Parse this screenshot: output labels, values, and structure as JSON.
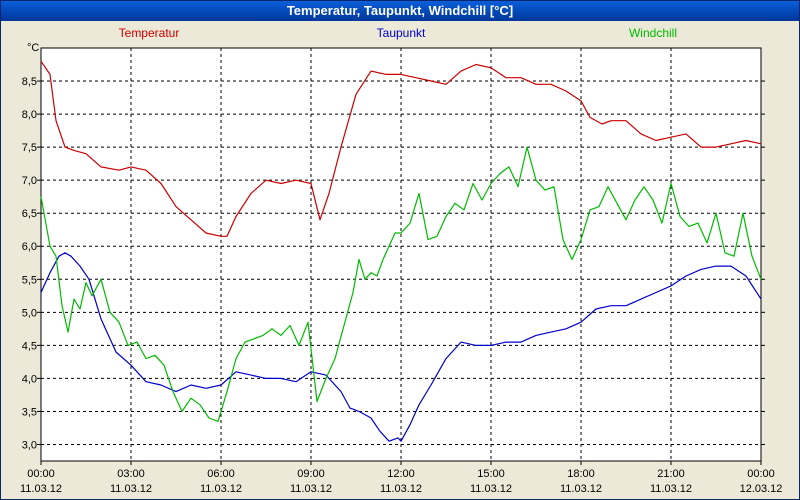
{
  "window": {
    "title": "Temperatur, Taupunkt, Windchill [°C]"
  },
  "chart_data": {
    "type": "line",
    "title": "Temperatur, Taupunkt, Windchill [°C]",
    "ylabel": "°C",
    "ylim": [
      2.75,
      9.0
    ],
    "yticks": [
      "3,0",
      "3,5",
      "4,0",
      "4,5",
      "5,0",
      "5,5",
      "6,0",
      "6,5",
      "7,0",
      "7,5",
      "8,0",
      "8,5"
    ],
    "ytick_values": [
      3.0,
      3.5,
      4.0,
      4.5,
      5.0,
      5.5,
      6.0,
      6.5,
      7.0,
      7.5,
      8.0,
      8.5
    ],
    "xlim": [
      0,
      24
    ],
    "xticks": [
      {
        "time": "00:00",
        "date": "11.03.12"
      },
      {
        "time": "03:00",
        "date": "11.03.12"
      },
      {
        "time": "06:00",
        "date": "11.03.12"
      },
      {
        "time": "09:00",
        "date": "11.03.12"
      },
      {
        "time": "12:00",
        "date": "11.03.12"
      },
      {
        "time": "15:00",
        "date": "11.03.12"
      },
      {
        "time": "18:00",
        "date": "11.03.12"
      },
      {
        "time": "21:00",
        "date": "11.03.12"
      },
      {
        "time": "00:00",
        "date": "12.03.12"
      }
    ],
    "grid": true,
    "legend_placement": "top",
    "series": [
      {
        "name": "Temperatur",
        "color": "#cc0000",
        "x": [
          0,
          0.3,
          0.5,
          0.8,
          1.1,
          1.5,
          2,
          2.6,
          3,
          3.5,
          4,
          4.5,
          5,
          5.5,
          6,
          6.2,
          6.5,
          7,
          7.5,
          8,
          8.5,
          9,
          9.3,
          9.6,
          10,
          10.5,
          11,
          11.5,
          12,
          12.5,
          13,
          13.5,
          14,
          14.5,
          15,
          15.5,
          16,
          16.5,
          17,
          17.5,
          18,
          18.3,
          18.7,
          19,
          19.5,
          20,
          20.5,
          21,
          21.5,
          22,
          22.5,
          23,
          23.5,
          24
        ],
        "y": [
          8.8,
          8.6,
          7.9,
          7.5,
          7.45,
          7.4,
          7.2,
          7.15,
          7.2,
          7.15,
          6.95,
          6.6,
          6.4,
          6.2,
          6.15,
          6.15,
          6.45,
          6.8,
          7.0,
          6.95,
          7.0,
          6.95,
          6.4,
          6.8,
          7.5,
          8.3,
          8.65,
          8.6,
          8.6,
          8.55,
          8.5,
          8.45,
          8.65,
          8.75,
          8.7,
          8.55,
          8.55,
          8.45,
          8.45,
          8.35,
          8.2,
          7.95,
          7.85,
          7.9,
          7.9,
          7.7,
          7.6,
          7.65,
          7.7,
          7.5,
          7.5,
          7.55,
          7.6,
          7.55
        ]
      },
      {
        "name": "Taupunkt",
        "color": "#0000cc",
        "x": [
          0,
          0.3,
          0.6,
          0.8,
          1,
          1.3,
          1.6,
          2,
          2.5,
          3,
          3.5,
          4,
          4.5,
          5,
          5.5,
          6,
          6.5,
          7,
          7.5,
          8,
          8.5,
          9,
          9.5,
          10,
          10.3,
          10.6,
          11,
          11.3,
          11.6,
          11.9,
          12,
          12.3,
          12.6,
          13,
          13.5,
          14,
          14.5,
          15,
          15.5,
          16,
          16.5,
          17,
          17.5,
          18,
          18.5,
          19,
          19.5,
          20,
          20.5,
          21,
          21.5,
          22,
          22.5,
          23,
          23.5,
          24
        ],
        "y": [
          5.3,
          5.6,
          5.85,
          5.9,
          5.85,
          5.7,
          5.5,
          4.9,
          4.4,
          4.2,
          3.95,
          3.9,
          3.8,
          3.9,
          3.85,
          3.9,
          4.1,
          4.05,
          4.0,
          4.0,
          3.95,
          4.1,
          4.05,
          3.8,
          3.55,
          3.5,
          3.4,
          3.2,
          3.05,
          3.1,
          3.05,
          3.3,
          3.6,
          3.9,
          4.3,
          4.55,
          4.5,
          4.5,
          4.55,
          4.55,
          4.65,
          4.7,
          4.75,
          4.85,
          5.05,
          5.1,
          5.1,
          5.2,
          5.3,
          5.4,
          5.55,
          5.65,
          5.7,
          5.7,
          5.55,
          5.2
        ]
      },
      {
        "name": "Windchill",
        "color": "#00bb00",
        "x": [
          0,
          0.3,
          0.5,
          0.7,
          0.9,
          1.1,
          1.3,
          1.5,
          1.7,
          2,
          2.3,
          2.6,
          2.9,
          3.2,
          3.5,
          3.8,
          4.1,
          4.4,
          4.7,
          5,
          5.3,
          5.6,
          5.9,
          6.2,
          6.5,
          6.8,
          7.1,
          7.4,
          7.7,
          8,
          8.3,
          8.6,
          8.9,
          9.2,
          9.5,
          9.8,
          10.1,
          10.4,
          10.6,
          10.8,
          11,
          11.2,
          11.4,
          11.6,
          11.8,
          12,
          12.3,
          12.6,
          12.9,
          13.2,
          13.5,
          13.8,
          14.1,
          14.4,
          14.7,
          15,
          15.3,
          15.6,
          15.9,
          16.2,
          16.5,
          16.8,
          17.1,
          17.4,
          17.7,
          18,
          18.3,
          18.6,
          18.9,
          19.2,
          19.5,
          19.8,
          20.1,
          20.4,
          20.7,
          21,
          21.3,
          21.6,
          21.9,
          22.2,
          22.5,
          22.8,
          23.1,
          23.4,
          23.7,
          24
        ],
        "y": [
          6.75,
          6.0,
          5.85,
          5.1,
          4.7,
          5.2,
          5.05,
          5.45,
          5.25,
          5.5,
          5.0,
          4.85,
          4.5,
          4.55,
          4.3,
          4.35,
          4.2,
          3.8,
          3.5,
          3.7,
          3.6,
          3.4,
          3.35,
          3.8,
          4.3,
          4.55,
          4.6,
          4.65,
          4.75,
          4.65,
          4.8,
          4.5,
          4.85,
          3.65,
          4.0,
          4.3,
          4.8,
          5.3,
          5.8,
          5.5,
          5.6,
          5.55,
          5.8,
          6.0,
          6.2,
          6.2,
          6.35,
          6.8,
          6.1,
          6.15,
          6.45,
          6.65,
          6.55,
          6.95,
          6.7,
          6.95,
          7.1,
          7.2,
          6.9,
          7.5,
          7.0,
          6.85,
          6.9,
          6.1,
          5.8,
          6.1,
          6.55,
          6.6,
          6.9,
          6.65,
          6.4,
          6.7,
          6.9,
          6.7,
          6.35,
          6.95,
          6.45,
          6.3,
          6.35,
          6.05,
          6.5,
          5.9,
          5.85,
          6.5,
          5.85,
          5.5
        ]
      }
    ]
  }
}
